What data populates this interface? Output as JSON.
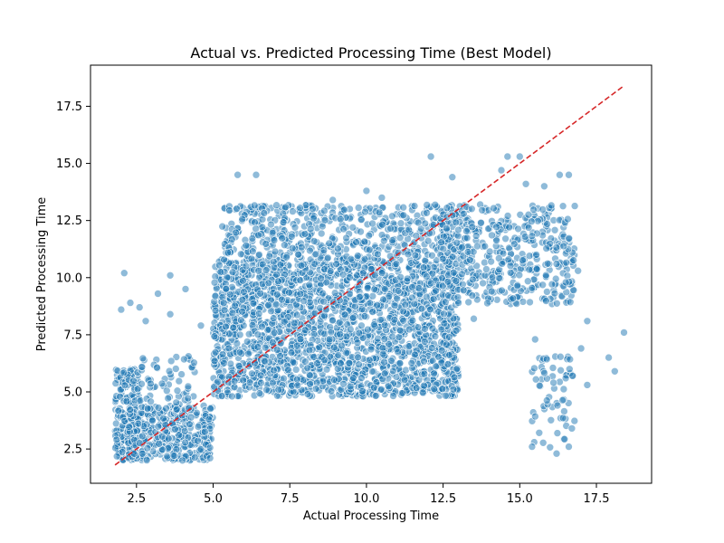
{
  "chart_data": {
    "type": "scatter",
    "title": "Actual vs. Predicted Processing Time (Best Model)",
    "xlabel": "Actual Processing Time",
    "ylabel": "Predicted Processing Time",
    "xlim": [
      1.0,
      19.3
    ],
    "ylim": [
      1.0,
      19.3
    ],
    "x_ticks": [
      "2.5",
      "5.0",
      "7.5",
      "10.0",
      "12.5",
      "15.0",
      "17.5"
    ],
    "y_ticks": [
      "2.5",
      "5.0",
      "7.5",
      "10.0",
      "12.5",
      "15.0",
      "17.5"
    ],
    "grid": false,
    "legend": "none",
    "marker_color": "#1f77b4",
    "marker_alpha": 0.5,
    "reference_line": {
      "style": "dashed",
      "color": "#d62728",
      "from": [
        1.8,
        1.8
      ],
      "to": [
        18.4,
        18.4
      ]
    },
    "clusters": [
      {
        "x_range": [
          1.8,
          2.6
        ],
        "y_range": [
          2.0,
          6.0
        ],
        "count": 220
      },
      {
        "x_range": [
          2.2,
          5.0
        ],
        "y_range": [
          2.0,
          4.4
        ],
        "count": 360
      },
      {
        "x_range": [
          2.6,
          4.5
        ],
        "y_range": [
          4.2,
          6.6
        ],
        "count": 70
      },
      {
        "x_range": [
          5.0,
          13.0
        ],
        "y_range": [
          4.8,
          10.8
        ],
        "count": 2200
      },
      {
        "x_range": [
          5.3,
          13.4
        ],
        "y_range": [
          10.8,
          13.2
        ],
        "count": 500
      },
      {
        "x_range": [
          12.4,
          16.8
        ],
        "y_range": [
          8.8,
          13.2
        ],
        "count": 420
      },
      {
        "x_range": [
          15.4,
          16.8
        ],
        "y_range": [
          2.5,
          6.6
        ],
        "count": 60
      }
    ],
    "points": [
      [
        2.1,
        10.2
      ],
      [
        3.6,
        10.1
      ],
      [
        5.8,
        14.5
      ],
      [
        6.4,
        14.5
      ],
      [
        8.9,
        13.4
      ],
      [
        10.0,
        13.8
      ],
      [
        10.5,
        13.5
      ],
      [
        12.1,
        15.3
      ],
      [
        12.8,
        14.4
      ],
      [
        14.4,
        14.7
      ],
      [
        14.6,
        15.3
      ],
      [
        15.0,
        15.3
      ],
      [
        15.2,
        14.1
      ],
      [
        15.8,
        14.0
      ],
      [
        16.3,
        14.5
      ],
      [
        16.6,
        14.5
      ],
      [
        16.2,
        10.6
      ],
      [
        16.9,
        10.3
      ],
      [
        17.2,
        8.1
      ],
      [
        17.9,
        6.5
      ],
      [
        18.1,
        5.9
      ],
      [
        18.4,
        7.6
      ],
      [
        17.2,
        5.3
      ],
      [
        17.0,
        6.9
      ],
      [
        15.5,
        7.3
      ],
      [
        16.1,
        5.4
      ],
      [
        16.5,
        5.6
      ],
      [
        16.7,
        3.4
      ],
      [
        15.4,
        2.6
      ],
      [
        16.2,
        2.3
      ],
      [
        16.6,
        2.6
      ],
      [
        4.9,
        2.1
      ],
      [
        4.0,
        2.0
      ],
      [
        10.6,
        5.8
      ],
      [
        12.2,
        5.8
      ],
      [
        10.1,
        6.4
      ],
      [
        11.9,
        7.2
      ],
      [
        12.7,
        7.4
      ],
      [
        13.0,
        8.9
      ],
      [
        13.5,
        8.2
      ],
      [
        3.2,
        9.3
      ],
      [
        4.1,
        9.5
      ],
      [
        4.6,
        7.9
      ],
      [
        2.0,
        8.6
      ],
      [
        2.8,
        8.1
      ],
      [
        3.6,
        8.4
      ],
      [
        2.3,
        8.9
      ],
      [
        2.6,
        8.7
      ]
    ]
  }
}
